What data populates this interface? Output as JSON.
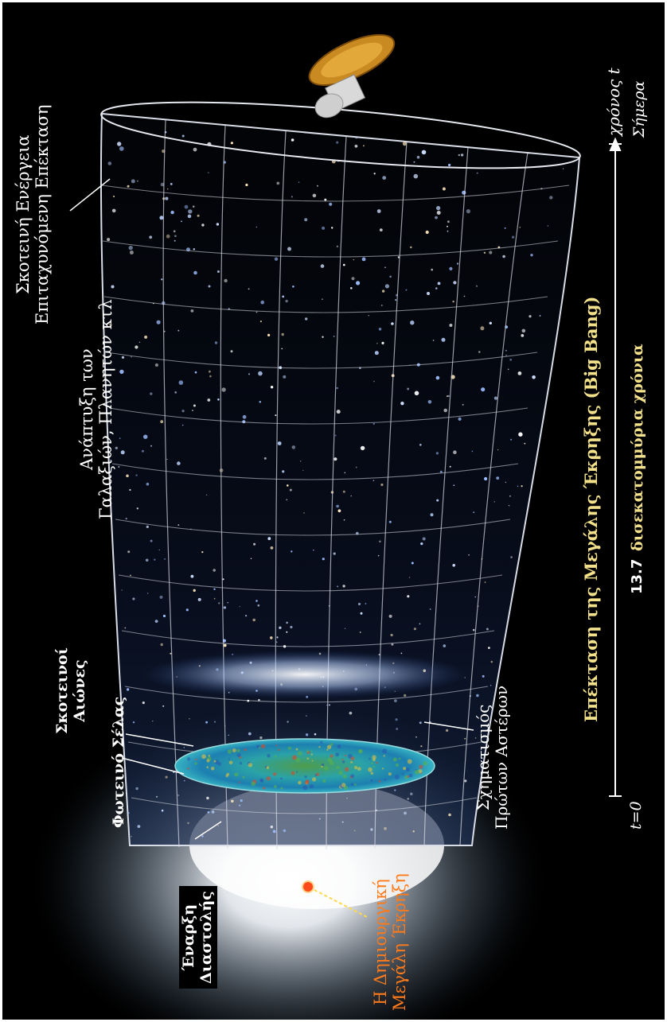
{
  "labels": {
    "dark_energy": [
      "Σκοτεινή Ενέργεια",
      "Επιταχυνόμενη Επέκταση"
    ],
    "galaxy_dev": [
      "Ανάπτυξη των",
      "Γαλαξιών, Πλανητών κτλ"
    ],
    "dark_ages": [
      "Σκοτεινοί",
      "Αιώνες"
    ],
    "afterglow": [
      "Φωτεινό Σέλας"
    ],
    "inflation": [
      "Έναρξη",
      "Διαστολής"
    ],
    "first_stars": [
      "Σχηματισμός",
      "Πρώτων Αστέρων"
    ],
    "big_bang": [
      "Η Δημιουργική",
      "Μεγάλη Έκρηξη"
    ]
  },
  "timeline": {
    "caption": "Επέκταση της Μεγάλης Έκρηξης (Big Bang)",
    "value": "13.7",
    "unit": "δισεκατομμύρια χρόνια",
    "start": "t=0",
    "end_a": "χρόνος t",
    "end_b": "Σήμερα"
  },
  "colors": {
    "label": "#ffffff",
    "caption": "#f2e08a",
    "big_bang": "#ff7a1a",
    "grid": "#d8dce6"
  }
}
